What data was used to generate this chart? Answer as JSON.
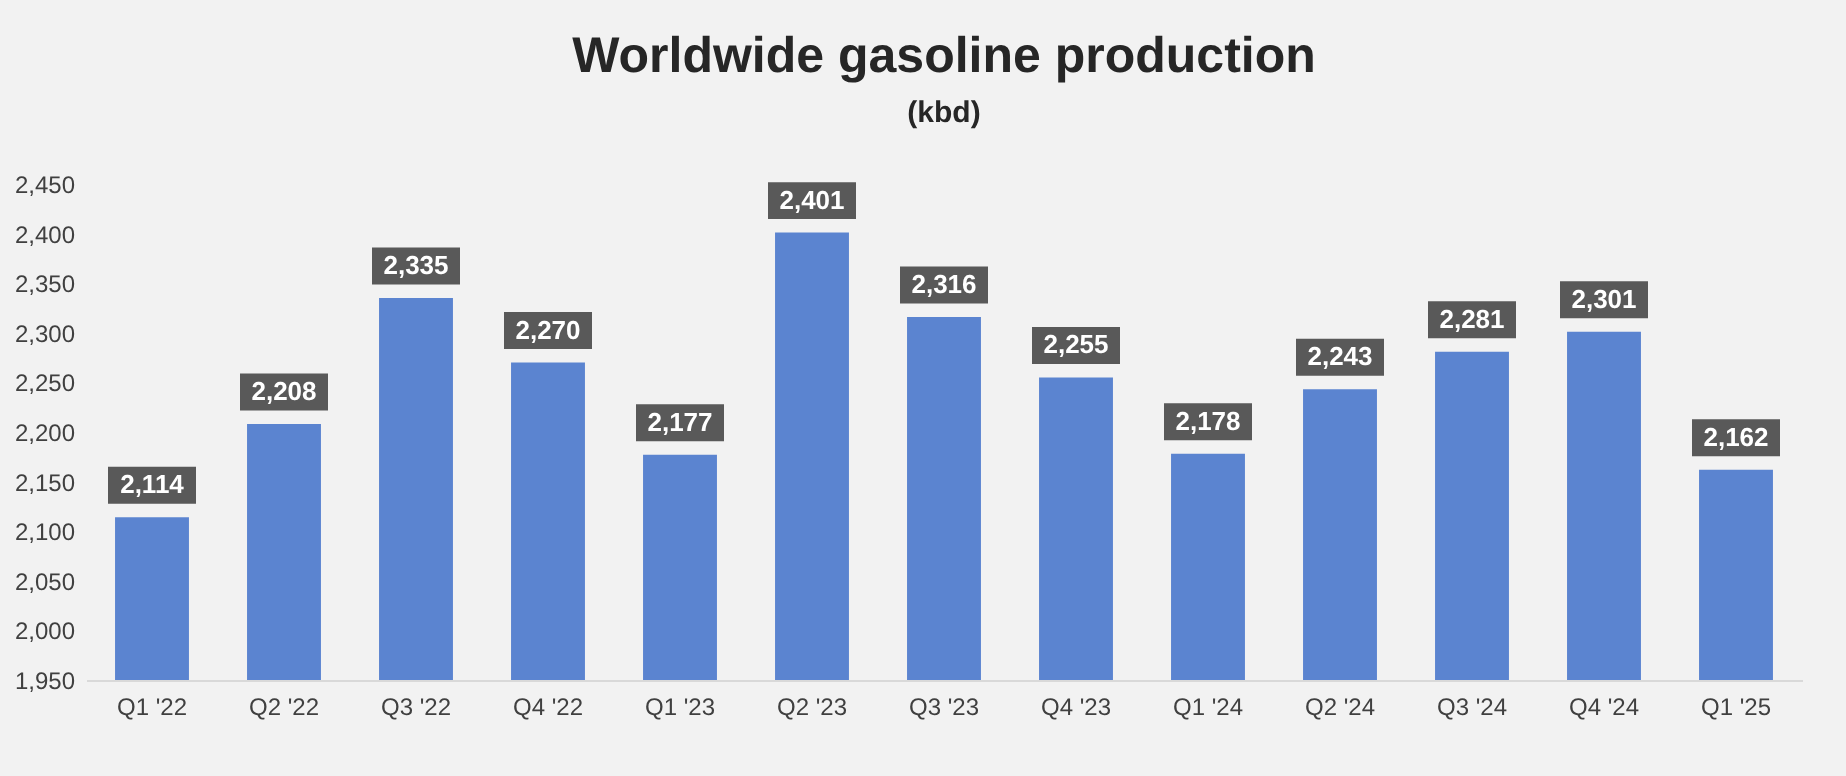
{
  "chart_data": {
    "type": "bar",
    "title": "Worldwide gasoline production",
    "subtitle": "(kbd)",
    "categories": [
      "Q1 '22",
      "Q2 '22",
      "Q3 '22",
      "Q4 '22",
      "Q1 '23",
      "Q2 '23",
      "Q3 '23",
      "Q4 '23",
      "Q1 '24",
      "Q2 '24",
      "Q3 '24",
      "Q4 '24",
      "Q1 '25"
    ],
    "values": [
      2114,
      2208,
      2335,
      2270,
      2177,
      2401,
      2316,
      2255,
      2178,
      2243,
      2281,
      2301,
      2162
    ],
    "color": "#5b84d0",
    "ylim": [
      1950,
      2450
    ],
    "yticks": [
      {
        "value": 1950,
        "label": "1,950"
      },
      {
        "value": 2000,
        "label": "2,000"
      },
      {
        "value": 2050,
        "label": "2,050"
      },
      {
        "value": 2100,
        "label": "2,100"
      },
      {
        "value": 2150,
        "label": "2,150"
      },
      {
        "value": 2200,
        "label": "2,200"
      },
      {
        "value": 2250,
        "label": "2,250"
      },
      {
        "value": 2300,
        "label": "2,300"
      },
      {
        "value": 2350,
        "label": "2,350"
      },
      {
        "value": 2400,
        "label": "2,400"
      },
      {
        "value": 2450,
        "label": "2,450"
      }
    ],
    "value_labels": [
      "2,114",
      "2,208",
      "2,335",
      "2,270",
      "2,177",
      "2,401",
      "2,316",
      "2,255",
      "2,178",
      "2,243",
      "2,281",
      "2,301",
      "2,162"
    ],
    "grid": false
  }
}
